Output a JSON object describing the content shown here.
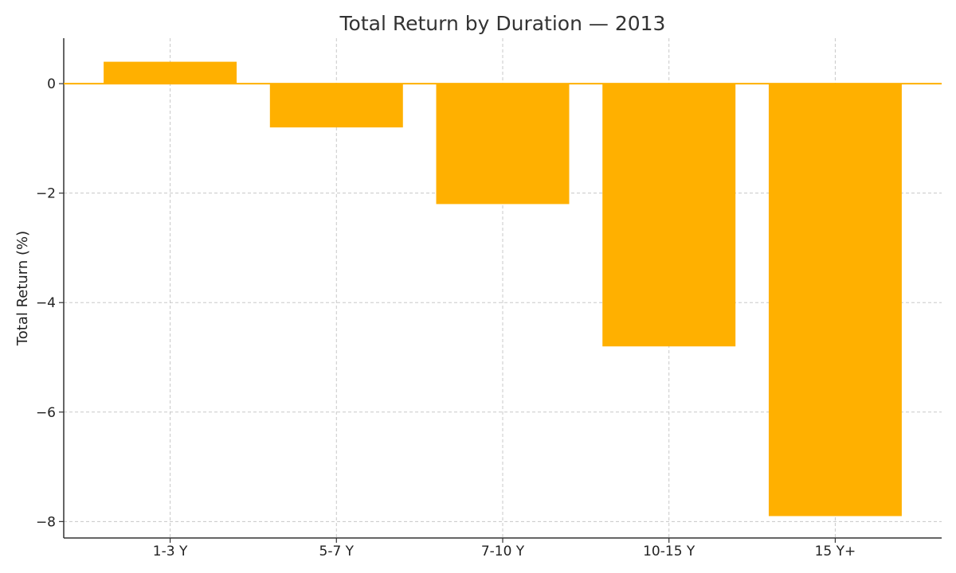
{
  "chart_data": {
    "type": "bar",
    "title": "Total Return by Duration — 2013",
    "xlabel": "",
    "ylabel": "Total Return (%)",
    "categories": [
      "1-3 Y",
      "5-7 Y",
      "7-10 Y",
      "10-15 Y",
      "15 Y+"
    ],
    "values": [
      0.4,
      -0.8,
      -2.2,
      -4.8,
      -7.9
    ],
    "ylim": [
      -8.3,
      0.83
    ],
    "yticks": [
      0,
      -2,
      -4,
      -6,
      -8
    ],
    "ytick_labels": [
      "0",
      "−2",
      "−4",
      "−6",
      "−8"
    ],
    "grid": true,
    "zero_line": true,
    "bar_color": "#FFB000"
  }
}
